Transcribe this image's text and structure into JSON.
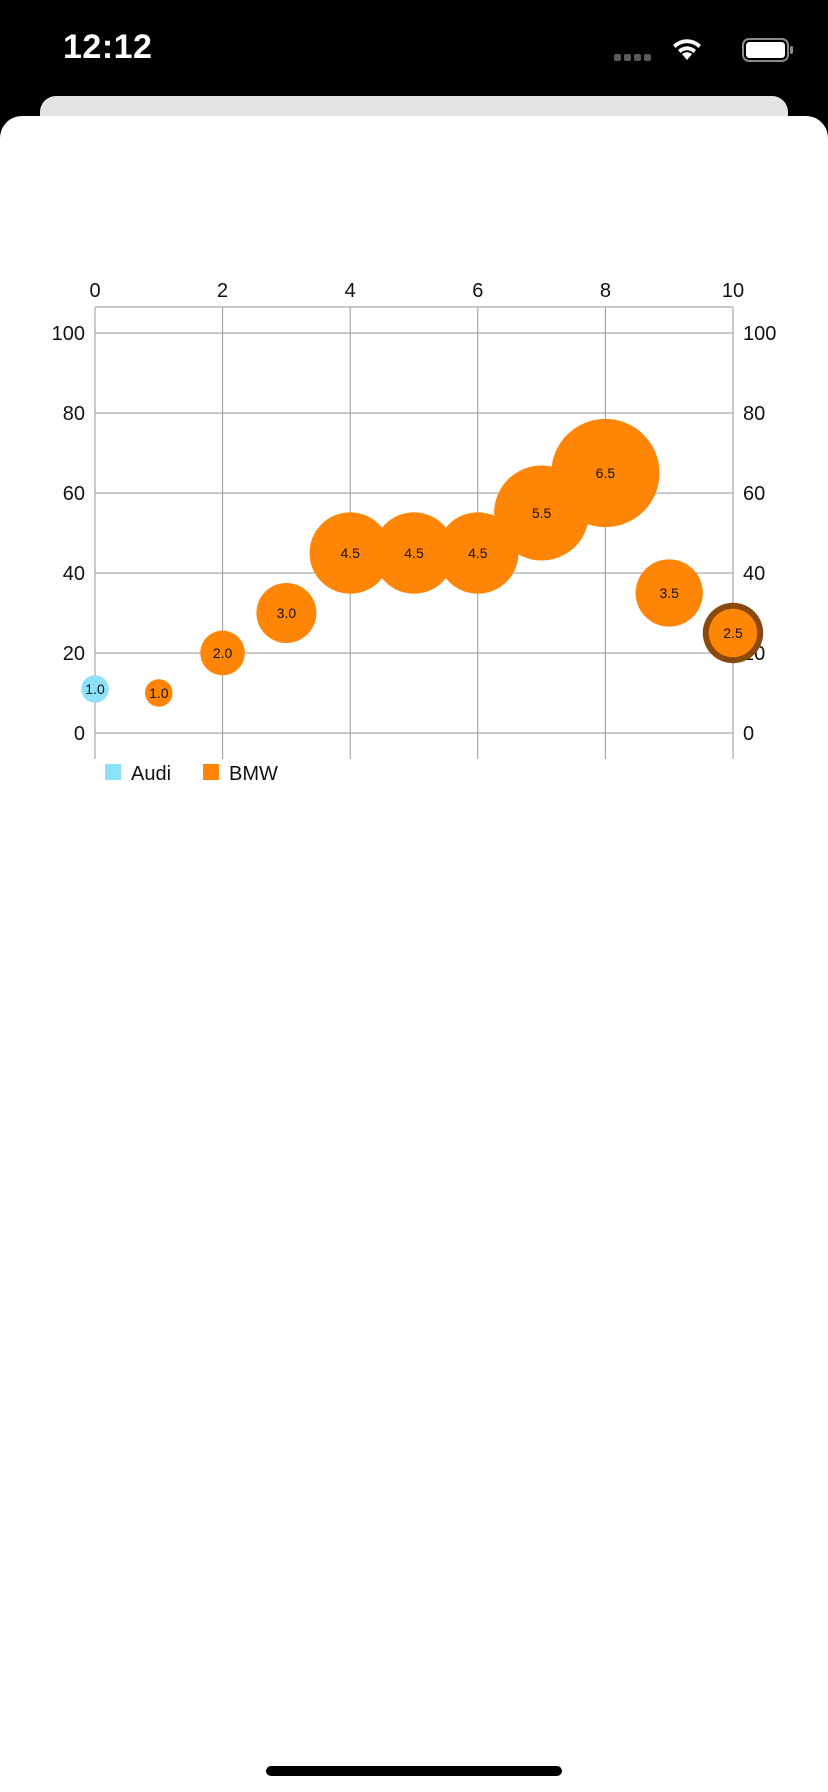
{
  "status_bar": {
    "time": "12:12",
    "icons": [
      "signal-icon",
      "wifi-icon",
      "battery-icon"
    ]
  },
  "chart_data": {
    "type": "scatter",
    "subtype": "bubble",
    "title": "",
    "xlabel": "",
    "ylabel": "",
    "xlim": [
      0,
      10
    ],
    "ylim": [
      0,
      100
    ],
    "x_ticks": [
      "0",
      "2",
      "4",
      "6",
      "8",
      "10"
    ],
    "y_ticks": [
      "0",
      "20",
      "40",
      "60",
      "80",
      "100"
    ],
    "x_axis_position": "top",
    "y_axis_position": "both",
    "grid": true,
    "legend": "bottom-left",
    "series": [
      {
        "name": "Audi",
        "color": "#8ee1fb",
        "points": [
          {
            "x": 0,
            "y": 11,
            "size": 1.0,
            "label": "1.0"
          }
        ]
      },
      {
        "name": "BMW",
        "color": "#ff8507",
        "points": [
          {
            "x": 1,
            "y": 10,
            "size": 1.0,
            "label": "1.0"
          },
          {
            "x": 2,
            "y": 20,
            "size": 2.0,
            "label": "2.0"
          },
          {
            "x": 3,
            "y": 30,
            "size": 3.0,
            "label": "3.0"
          },
          {
            "x": 4,
            "y": 45,
            "size": 4.5,
            "label": "4.5"
          },
          {
            "x": 5,
            "y": 45,
            "size": 4.5,
            "label": "4.5"
          },
          {
            "x": 6,
            "y": 45,
            "size": 4.5,
            "label": "4.5"
          },
          {
            "x": 7,
            "y": 55,
            "size": 5.5,
            "label": "5.5"
          },
          {
            "x": 8,
            "y": 65,
            "size": 6.5,
            "label": "6.5"
          },
          {
            "x": 9,
            "y": 35,
            "size": 3.5,
            "label": "3.5"
          },
          {
            "x": 10,
            "y": 25,
            "size": 2.5,
            "label": "2.5",
            "highlighted": true
          }
        ]
      }
    ],
    "highlight_color": "#8a4a0c",
    "grid_color": "#999999"
  }
}
